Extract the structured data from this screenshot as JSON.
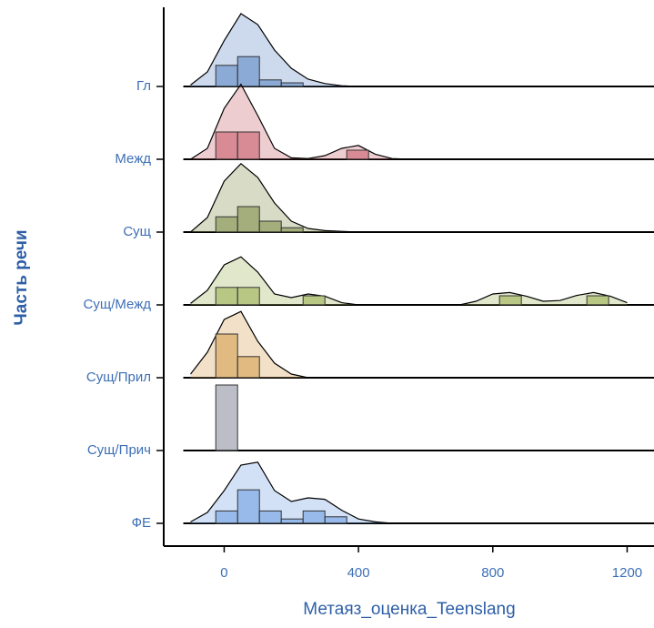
{
  "chart_data": {
    "type": "ridgeline",
    "xlabel": "Метаяз_оценка_Teenslang",
    "ylabel": "Часть речи",
    "xlim": [
      -180,
      1280
    ],
    "xticks": [
      0,
      400,
      800,
      1200
    ],
    "density_x": [
      -100,
      -50,
      0,
      50,
      100,
      150,
      200,
      250,
      300,
      350,
      400,
      450,
      500,
      550,
      600,
      650,
      700,
      750,
      800,
      850,
      900,
      950,
      1000,
      1050,
      1100,
      1150,
      1200
    ],
    "bins": [
      -25,
      40,
      105,
      170,
      235,
      300,
      365,
      430,
      495,
      560,
      625,
      690,
      755,
      820,
      885,
      950,
      1015,
      1080,
      1145,
      1210,
      1275
    ],
    "series": [
      {
        "name": "Гл",
        "color": "#6f95cc",
        "density": [
          0.02,
          0.2,
          0.63,
          1.0,
          0.85,
          0.5,
          0.25,
          0.1,
          0.04,
          0.01,
          0,
          0,
          0,
          0,
          0,
          0,
          0,
          0,
          0,
          0,
          0,
          0,
          0,
          0,
          0,
          0,
          0
        ],
        "hist": [
          0.29,
          0.41,
          0.09,
          0.05,
          0,
          0,
          0,
          0,
          0,
          0,
          0,
          0,
          0,
          0,
          0,
          0,
          0,
          0,
          0,
          0
        ]
      },
      {
        "name": "Межд",
        "color": "#cf6f7c",
        "density": [
          0,
          0.15,
          0.7,
          1.03,
          0.6,
          0.15,
          0.02,
          0.01,
          0.05,
          0.15,
          0.19,
          0.07,
          0.01,
          0,
          0,
          0,
          0,
          0,
          0,
          0,
          0,
          0,
          0,
          0,
          0,
          0,
          0
        ],
        "hist": [
          0.375,
          0.375,
          0,
          0,
          0,
          0,
          0.125,
          0,
          0,
          0,
          0,
          0,
          0,
          0,
          0,
          0,
          0,
          0,
          0,
          0
        ]
      },
      {
        "name": "Сущ",
        "color": "#8e9a5c",
        "density": [
          0,
          0.2,
          0.7,
          0.94,
          0.75,
          0.4,
          0.15,
          0.05,
          0.02,
          0.01,
          0,
          0,
          0,
          0,
          0,
          0,
          0,
          0,
          0,
          0,
          0,
          0,
          0,
          0,
          0,
          0,
          0
        ],
        "hist": [
          0.21,
          0.35,
          0.15,
          0.06,
          0,
          0,
          0,
          0,
          0,
          0,
          0,
          0,
          0,
          0,
          0,
          0,
          0,
          0,
          0,
          0
        ]
      },
      {
        "name": "Сущ/Межд",
        "color": "#a6bb66",
        "density": [
          0.02,
          0.2,
          0.55,
          0.66,
          0.45,
          0.15,
          0.1,
          0.15,
          0.12,
          0.03,
          0,
          0,
          0,
          0,
          0,
          0,
          0,
          0.05,
          0.15,
          0.17,
          0.12,
          0.05,
          0.06,
          0.13,
          0.17,
          0.12,
          0.03
        ],
        "hist": [
          0.24,
          0.24,
          0,
          0,
          0.125,
          0,
          0,
          0,
          0,
          0,
          0,
          0,
          0,
          0.125,
          0,
          0,
          0,
          0.125,
          0,
          0
        ]
      },
      {
        "name": "Сущ/Прил",
        "color": "#d9aa62",
        "density": [
          0.05,
          0.35,
          0.8,
          0.91,
          0.5,
          0.2,
          0.05,
          0,
          0,
          0,
          0,
          0,
          0,
          0,
          0,
          0,
          0,
          0,
          0,
          0,
          0,
          0,
          0,
          0,
          0,
          0,
          0
        ],
        "hist": [
          0.6,
          0.29,
          0,
          0,
          0,
          0,
          0,
          0,
          0,
          0,
          0,
          0,
          0,
          0,
          0,
          0,
          0,
          0,
          0,
          0
        ]
      },
      {
        "name": "Сущ/Прич",
        "color": "#9ea3ae",
        "density": [
          null,
          null,
          null,
          null,
          null,
          null,
          null,
          null,
          null,
          null,
          null,
          null,
          null,
          null,
          null,
          null,
          null,
          null,
          null,
          null,
          null,
          null,
          null,
          null,
          null,
          null,
          null
        ],
        "hist": [
          0.9,
          0,
          0,
          0,
          0,
          0,
          0,
          0,
          0,
          0,
          0,
          0,
          0,
          0,
          0,
          0,
          0,
          0,
          0,
          0
        ]
      },
      {
        "name": "ФЕ",
        "color": "#7fa9e6",
        "density": [
          0.02,
          0.15,
          0.45,
          0.8,
          0.84,
          0.45,
          0.3,
          0.35,
          0.33,
          0.18,
          0.06,
          0.02,
          0,
          0,
          0,
          0,
          0,
          0,
          0,
          0,
          0,
          0,
          0,
          0,
          0,
          0,
          0
        ],
        "hist": [
          0.17,
          0.46,
          0.17,
          0.06,
          0.17,
          0.09,
          0,
          0,
          0,
          0,
          0,
          0,
          0,
          0,
          0,
          0,
          0,
          0,
          0,
          0
        ]
      }
    ]
  }
}
